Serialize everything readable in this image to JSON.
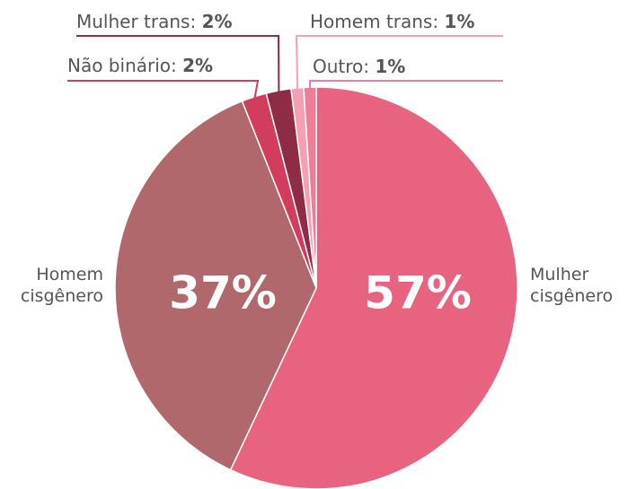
{
  "chart_data": {
    "type": "pie",
    "categories": [
      "Mulher cisgênero",
      "Homem cisgênero",
      "Não binário:",
      "Mulher trans:",
      "Homem trans:",
      "Outro:"
    ],
    "values": [
      57,
      37,
      2,
      2,
      1,
      1
    ],
    "value_labels": [
      "57%",
      "37%",
      "2%",
      "2%",
      "1%",
      "1%"
    ],
    "colors": [
      "#e8637f",
      "#b0686d",
      "#d13c5f",
      "#8e2c45",
      "#f3a0b5",
      "#f07d97"
    ]
  }
}
